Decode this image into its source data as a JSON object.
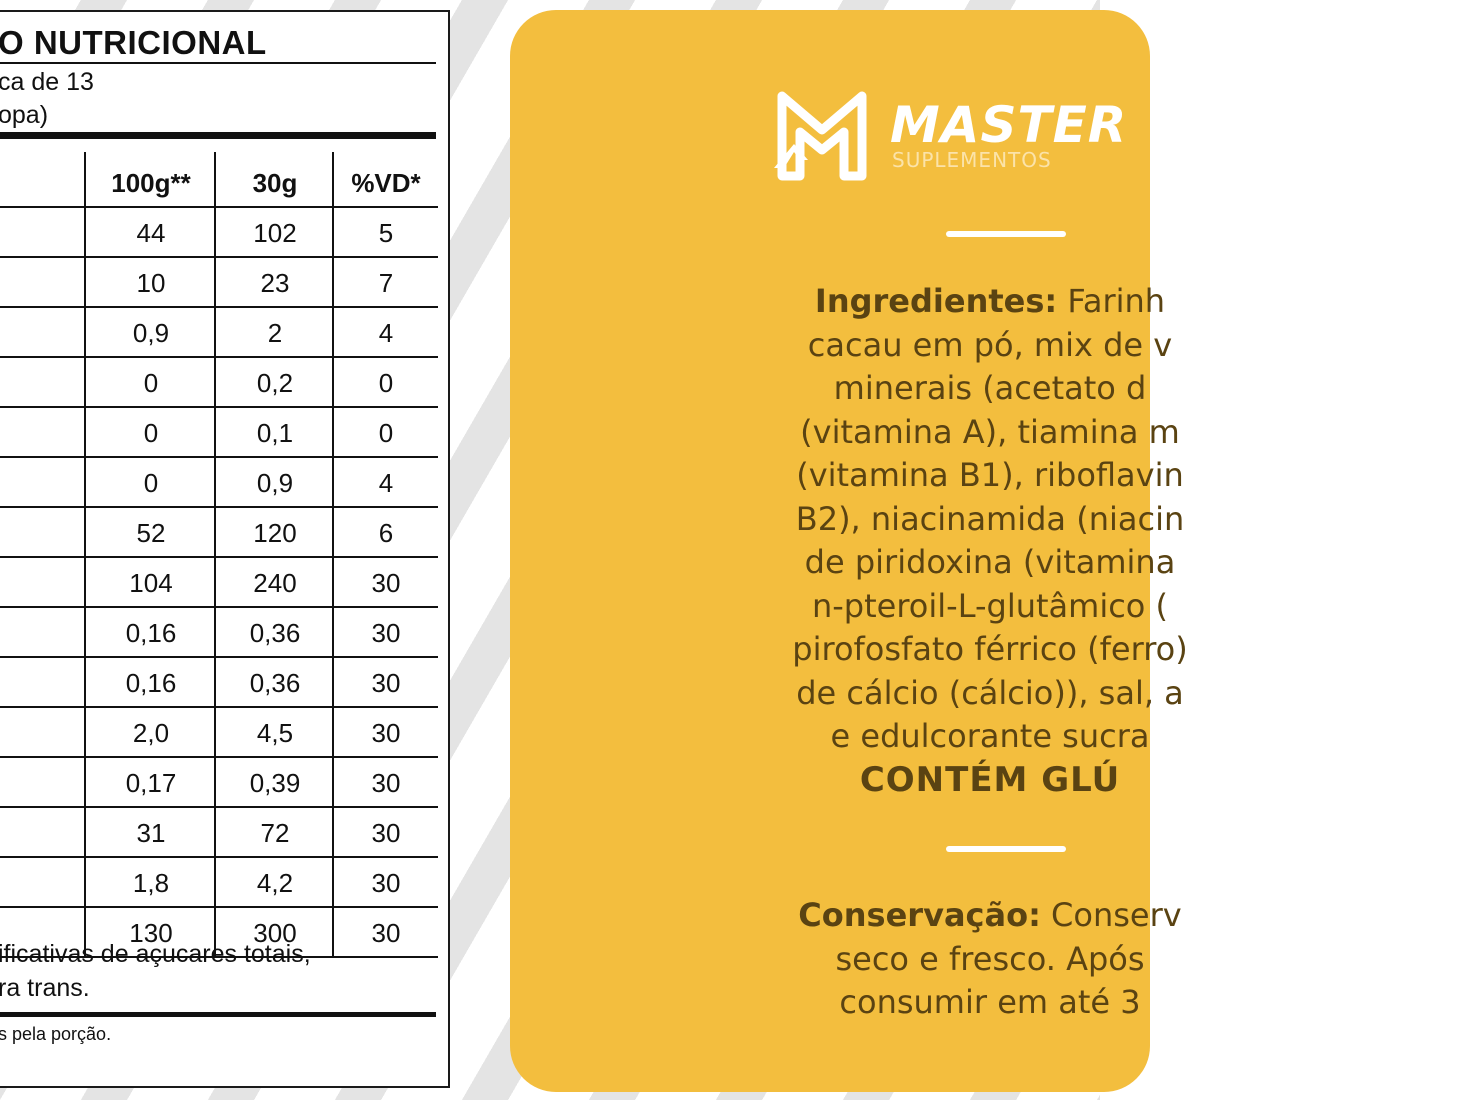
{
  "nutrition": {
    "title": "O NUTRICIONAL",
    "serving_line_1": "ca de 13",
    "serving_line_2": "opa)",
    "headers": [
      "100g**",
      "30g",
      "%VD*"
    ],
    "rows": [
      [
        "44",
        "102",
        "5"
      ],
      [
        "10",
        "23",
        "7"
      ],
      [
        "0,9",
        "2",
        "4"
      ],
      [
        "0",
        "0,2",
        "0"
      ],
      [
        "0",
        "0,1",
        "0"
      ],
      [
        "0",
        "0,9",
        "4"
      ],
      [
        "52",
        "120",
        "6"
      ],
      [
        "104",
        "240",
        "30"
      ],
      [
        "0,16",
        "0,36",
        "30"
      ],
      [
        "0,16",
        "0,36",
        "30"
      ],
      [
        "2,0",
        "4,5",
        "30"
      ],
      [
        "0,17",
        "0,39",
        "30"
      ],
      [
        "31",
        "72",
        "30"
      ],
      [
        "1,8",
        "4,2",
        "30"
      ],
      [
        "130",
        "300",
        "30"
      ]
    ],
    "footnote_1": "ificativas de açucares totais,",
    "footnote_2": "ra trans.",
    "small_note": "s pela porção."
  },
  "brand": {
    "name": "MASTER",
    "subtitle": "SUPLEMENTOS",
    "white": "#ffffff",
    "panel_color": "#f3be3e",
    "text_color": "#5a4312"
  },
  "ingredients": {
    "label": "Ingredientes:",
    "lines": [
      " Farinh",
      "cacau em pó, mix de v",
      "minerais (acetato d",
      "(vitamina A), tiamina m",
      "(vitamina B1), riboflavin",
      "B2), niacinamida (niacin",
      "de piridoxina (vitamina",
      "n-pteroil-L-glutâmico (",
      "pirofosfato férrico (ferro)",
      "de cálcio (cálcio)), sal, a",
      "e edulcorante sucra"
    ],
    "gluten": "CONTÉM GLÚ"
  },
  "conservation": {
    "label": "Conservação:",
    "lines": [
      " Conserv",
      "seco e fresco. Após",
      "consumir em até 3"
    ]
  }
}
